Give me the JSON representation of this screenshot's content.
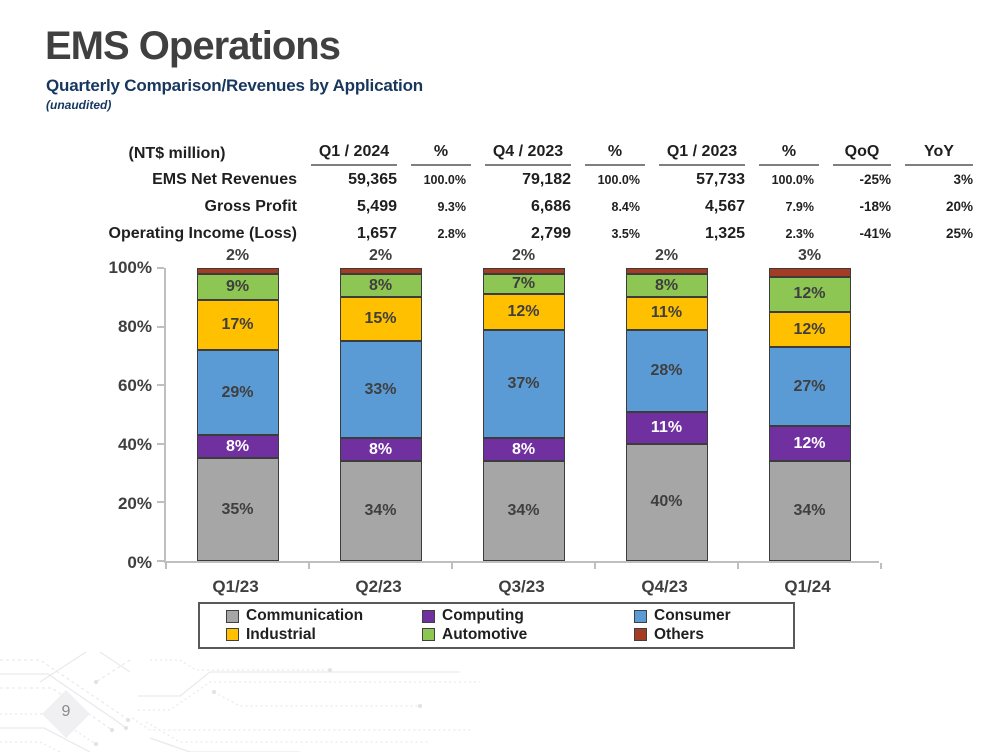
{
  "slide": {
    "title": "EMS Operations",
    "subtitle": "Quarterly Comparison/Revenues by Application",
    "note": "(unaudited)",
    "page_number": "9"
  },
  "table": {
    "unit_label": "(NT$ million)",
    "columns": [
      "Q1 / 2024",
      "%",
      "Q4 / 2023",
      "%",
      "Q1 / 2023",
      "%",
      "QoQ",
      "YoY"
    ],
    "rows": [
      {
        "label": "EMS Net Revenues",
        "values": [
          "59,365",
          "100.0%",
          "79,182",
          "100.0%",
          "57,733",
          "100.0%",
          "-25%",
          "3%"
        ]
      },
      {
        "label": "Gross Profit",
        "values": [
          "5,499",
          "9.3%",
          "6,686",
          "8.4%",
          "4,567",
          "7.9%",
          "-18%",
          "20%"
        ]
      },
      {
        "label": "Operating Income (Loss)",
        "values": [
          "1,657",
          "2.8%",
          "2,799",
          "3.5%",
          "1,325",
          "2.3%",
          "-41%",
          "25%"
        ]
      }
    ]
  },
  "chart_data": {
    "type": "bar",
    "stacked": true,
    "title": "",
    "categories": [
      "Q1/23",
      "Q2/23",
      "Q3/23",
      "Q4/23",
      "Q1/24"
    ],
    "series": [
      {
        "name": "Communication",
        "color": "#A6A6A6",
        "label_color": "#3f3f3f",
        "values": [
          35,
          34,
          34,
          40,
          34
        ]
      },
      {
        "name": "Computing",
        "color": "#7030A0",
        "label_color": "#ffffff",
        "values": [
          8,
          8,
          8,
          11,
          12
        ]
      },
      {
        "name": "Consumer",
        "color": "#5B9BD5",
        "label_color": "#3f3f3f",
        "values": [
          29,
          33,
          37,
          28,
          27
        ]
      },
      {
        "name": "Industrial",
        "color": "#FFC000",
        "label_color": "#3f3f3f",
        "values": [
          17,
          15,
          12,
          11,
          12
        ]
      },
      {
        "name": "Automotive",
        "color": "#8DC653",
        "label_color": "#3f3f3f",
        "values": [
          9,
          8,
          7,
          8,
          12
        ]
      },
      {
        "name": "Others",
        "color": "#A43B23",
        "label_color": "#3f3f3f",
        "values": [
          2,
          2,
          2,
          2,
          3
        ],
        "label_outside": true
      }
    ],
    "ylim": [
      0,
      100
    ],
    "yticks": [
      "0%",
      "20%",
      "40%",
      "60%",
      "80%",
      "100%"
    ],
    "value_suffix": "%",
    "grid": false,
    "legend_position": "bottom-box"
  },
  "decoration": {
    "accent_gray": "#E9E9EC"
  }
}
